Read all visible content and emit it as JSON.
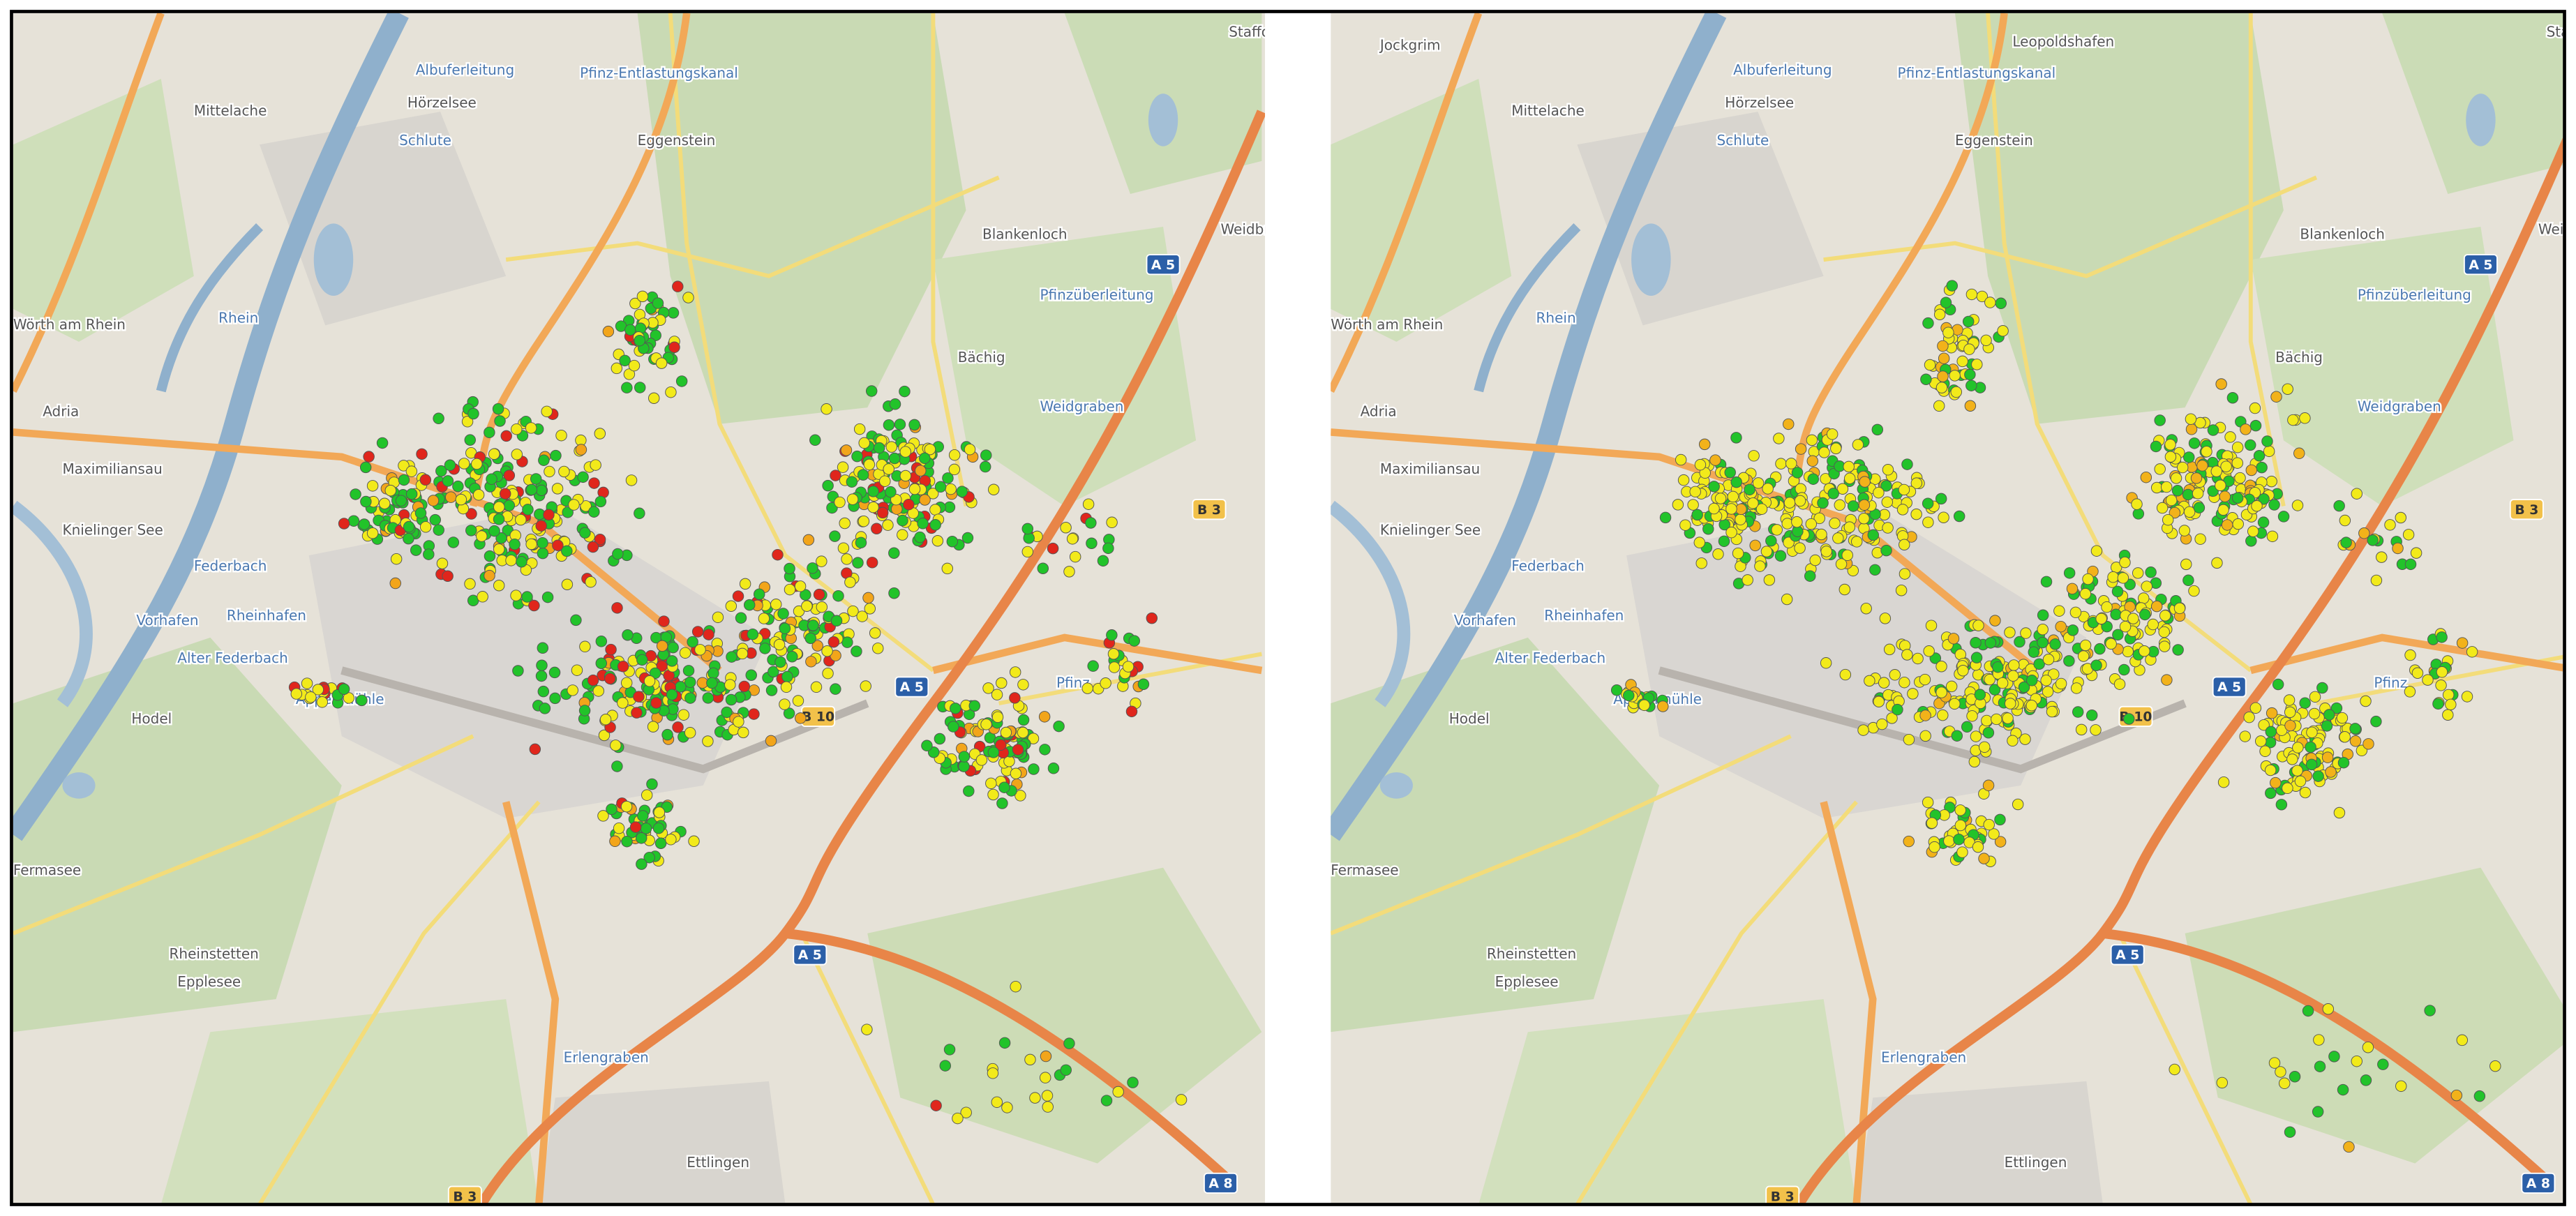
{
  "left_map": {
    "labels": [
      "Mittelache",
      "Albuferleitung",
      "Pfinz-Entlastungskanal",
      "Schlute",
      "Hörzelsee",
      "Eggenstein",
      "Staffort",
      "Blankenloch",
      "Weidbrüc",
      "A 5",
      "Rhein",
      "Wörth am Rhein",
      "Pfinzüberleitung",
      "Bächig",
      "Weidgraben",
      "Adria",
      "Maximiliansau",
      "Knielinger See",
      "Federbach",
      "B 3",
      "Vorhafen",
      "Rheinhafen",
      "Alter Federbach",
      "Appenmühle",
      "Hodel",
      "Pfinz",
      "B 10",
      "A 5",
      "A 5",
      "Fermasee",
      "Rheinstetten",
      "Epplesee",
      "Erlengraben",
      "Ettlingen",
      "B 3",
      "A 8"
    ]
  },
  "right_map": {
    "labels": [
      "Mittelache",
      "Albuferleitung",
      "Pfinz-Entlastungskanal",
      "Schlute",
      "Hörzelsee",
      "Eggenstein",
      "Staffort",
      "Blankenloch",
      "Weidbrüc",
      "A 5",
      "Rhein",
      "Wörth am Rhein",
      "Pfinzüberleitung",
      "Bächig",
      "Weidgraben",
      "Adria",
      "Maximiliansau",
      "Knielinger See",
      "Federbach",
      "B 3",
      "Vorhafen",
      "Rheinhafen",
      "Alter Federbach",
      "Appenmühle",
      "Hodel",
      "Pfinz",
      "B 10",
      "A 5",
      "A 5",
      "Fermasee",
      "Rheinstetten",
      "Epplesee",
      "Erlengraben",
      "Ettlingen",
      "B 3",
      "A 8",
      "Jockgrim",
      "Leopoldshafen"
    ]
  }
}
